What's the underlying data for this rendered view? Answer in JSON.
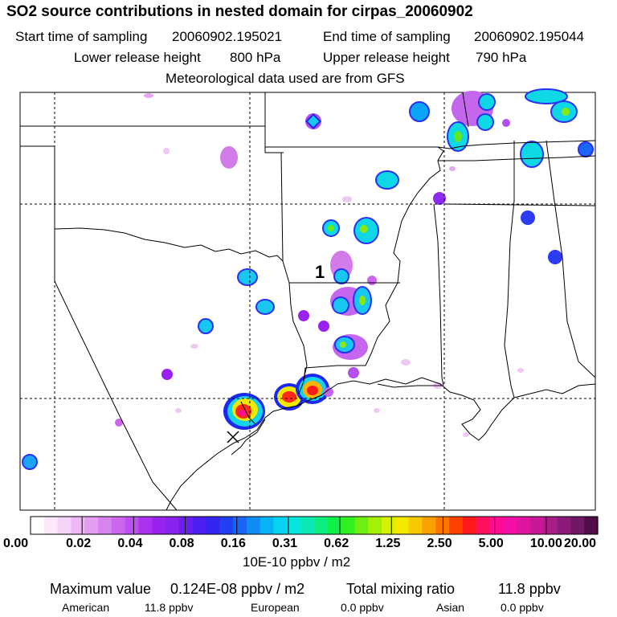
{
  "header": {
    "title": "SO2 source contributions in nested domain for cirpas_20060902",
    "start_label": "Start time of sampling",
    "start_value": "20060902.195021",
    "end_label": "End time of sampling",
    "end_value": "20060902.195044",
    "lower_label": "Lower release height",
    "lower_value": "800 hPa",
    "upper_label": "Upper release height",
    "upper_value": "790 hPa",
    "met_text": "Meteorological data used are from GFS"
  },
  "map": {
    "marker_label": "1"
  },
  "colorbar": {
    "tick_labels": [
      "0.00",
      "0.02",
      "0.04",
      "0.08",
      "0.16",
      "0.31",
      "0.62",
      "1.25",
      "2.50",
      "5.00",
      "10.00",
      "20.00"
    ],
    "unit_label": "10E-10 ppbv / m2",
    "colors": [
      "#ffffff",
      "#fbe9fb",
      "#f5d2f8",
      "#edb8f5",
      "#e39ef2",
      "#d884ef",
      "#cc66ee",
      "#bf4ff0",
      "#aa33f0",
      "#9922ee",
      "#8822ee",
      "#6a1ff0",
      "#4e1ef0",
      "#3424f2",
      "#2040f4",
      "#1766f5",
      "#0f8cf6",
      "#08b2f6",
      "#06d2f2",
      "#07e6de",
      "#0ae8b4",
      "#0ded80",
      "#10f04a",
      "#32f020",
      "#6cf012",
      "#a6f008",
      "#d8f004",
      "#f5e800",
      "#f8c800",
      "#faa000",
      "#fc7400",
      "#fe4000",
      "#ff1a1a",
      "#ff1060",
      "#ff0c90",
      "#f410a8",
      "#e014a0",
      "#c81898",
      "#aa1c88",
      "#8c1a78",
      "#6e1866",
      "#500e48"
    ]
  },
  "stats": {
    "max_label": "Maximum value",
    "max_value": "0.124E-08 ppbv / m2",
    "total_label": "Total mixing ratio",
    "total_value": "11.8 ppbv",
    "american_label": "American",
    "american_value": "11.8 ppbv",
    "european_label": "European",
    "european_value": "0.0 ppbv",
    "asian_label": "Asian",
    "asian_value": "0.0 ppbv"
  }
}
